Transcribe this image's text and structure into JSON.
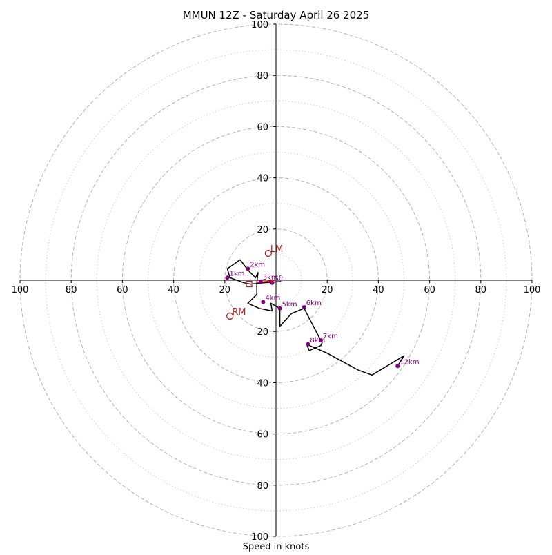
{
  "chart_data": {
    "type": "hodograph",
    "title": "MMUN 12Z - Saturday April 26 2025",
    "xlabel": "Speed in knots",
    "range_max": 100,
    "grid": {
      "dashed_rings": [
        20,
        40,
        60,
        80,
        100
      ],
      "dotted_rings": [
        10,
        30,
        50,
        70,
        90
      ]
    },
    "tick_values": [
      "20",
      "40",
      "60",
      "80",
      "100"
    ],
    "colors": {
      "trace": "#000000",
      "height_points": "#800080",
      "storm_motion": "#b22222",
      "grid": "#b0b0b0",
      "axes": "#000000"
    },
    "trace": [
      [
        2,
        -0.5
      ],
      [
        -5,
        -1
      ],
      [
        -10,
        -1.5
      ],
      [
        -12.5,
        -1
      ],
      [
        -18,
        1
      ],
      [
        -19,
        4.5
      ],
      [
        -14,
        8
      ],
      [
        -11,
        4
      ],
      [
        -8,
        1
      ],
      [
        -7,
        3
      ],
      [
        -7.5,
        -1
      ],
      [
        -7.5,
        -5.5
      ],
      [
        -11,
        -9
      ],
      [
        -6.5,
        -11
      ],
      [
        -1.5,
        -12
      ],
      [
        -2,
        -9
      ],
      [
        1.5,
        -11
      ],
      [
        1.5,
        -18
      ],
      [
        6,
        -13
      ],
      [
        11,
        -11
      ],
      [
        18,
        -24.5
      ],
      [
        17.5,
        -25.5
      ],
      [
        13,
        -27.5
      ],
      [
        12,
        -25
      ],
      [
        20,
        -28.5
      ],
      [
        32,
        -35
      ],
      [
        37.5,
        -37
      ],
      [
        50,
        -29.5
      ],
      [
        47.5,
        -33.5
      ]
    ],
    "height_points": [
      {
        "label": "Sfc",
        "u": -1.5,
        "v": -1
      },
      {
        "label": "1km",
        "u": -19,
        "v": 1
      },
      {
        "label": "2km",
        "u": -11,
        "v": 4.5
      },
      {
        "label": "3km",
        "u": -6,
        "v": -0.5
      },
      {
        "label": "4km",
        "u": -5,
        "v": -8.5
      },
      {
        "label": "5km",
        "u": 1.5,
        "v": -11
      },
      {
        "label": "6km",
        "u": 11,
        "v": -10.5
      },
      {
        "label": "7km",
        "u": 17.5,
        "v": -23.5
      },
      {
        "label": "8km",
        "u": 12.5,
        "v": -25
      },
      {
        "label": "12km",
        "u": 47.5,
        "v": -33.5
      }
    ],
    "storm_motion": [
      {
        "label": "LM",
        "u": -3,
        "v": 10.5
      },
      {
        "label": "RM",
        "u": -18,
        "v": -14
      },
      {
        "label": "",
        "u": -10.5,
        "v": -1.5
      }
    ],
    "shear_vector": {
      "from": [
        -7.5,
        -1
      ],
      "to": [
        0,
        0
      ]
    }
  }
}
